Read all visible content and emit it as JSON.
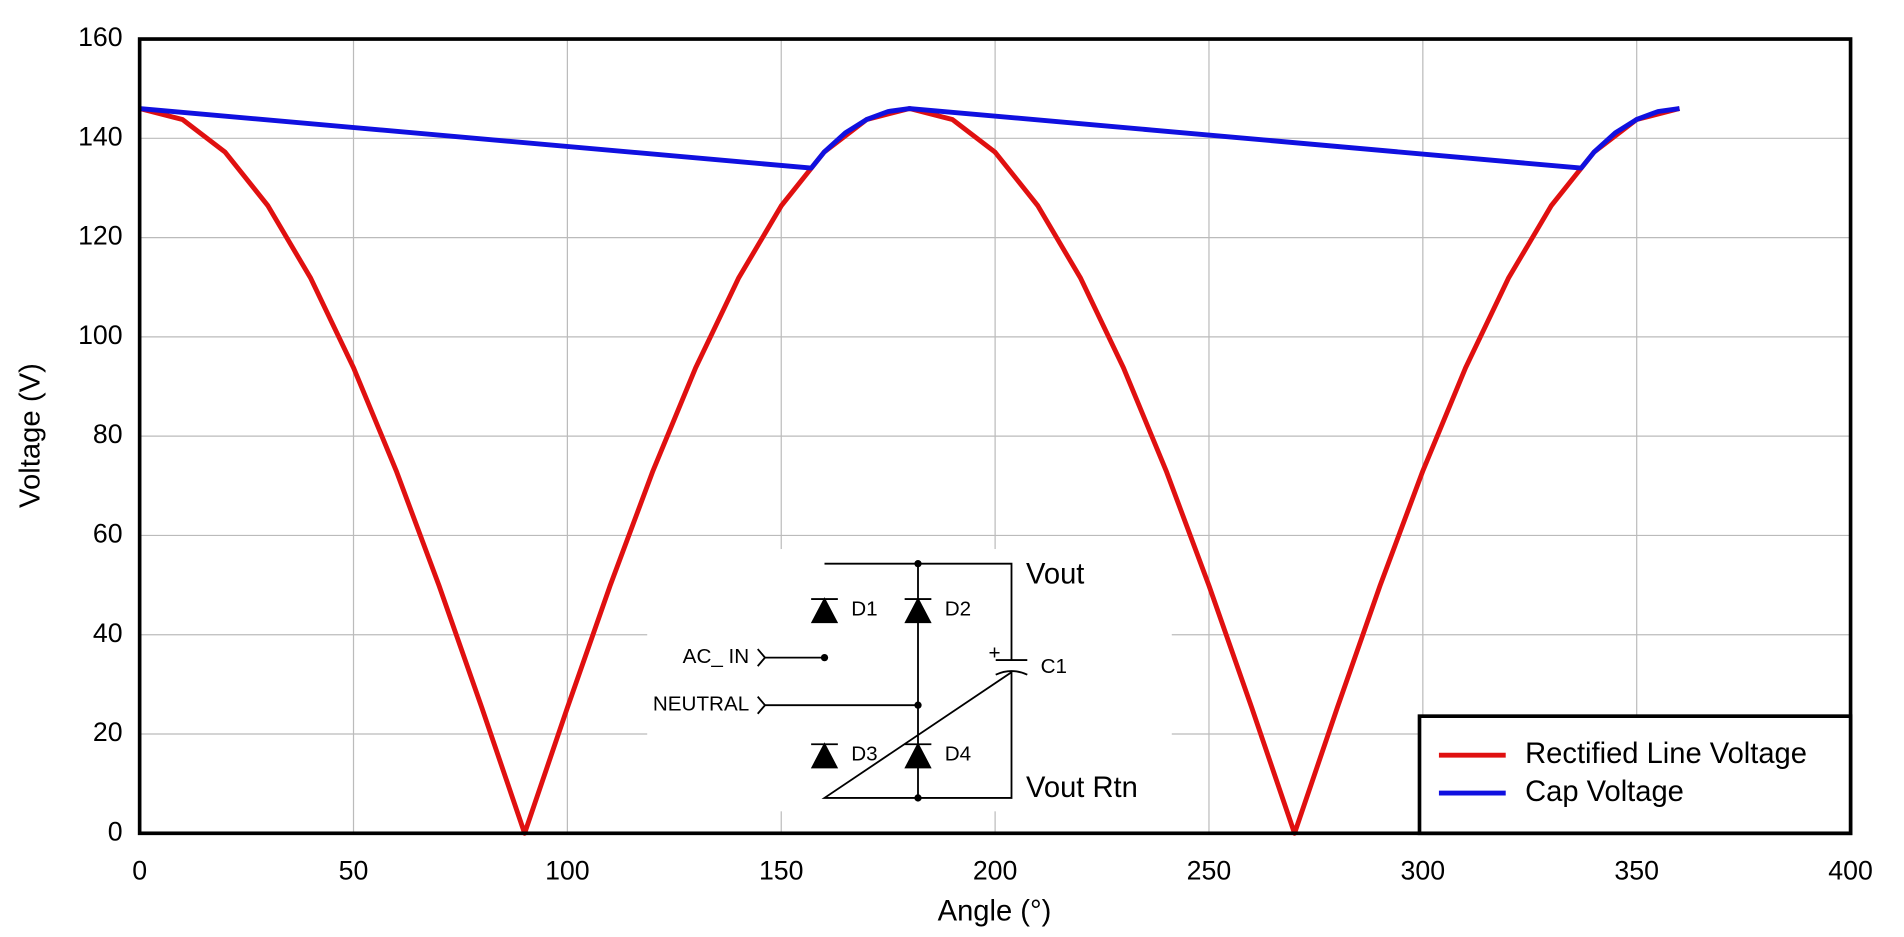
{
  "chart_data": {
    "type": "line",
    "xlabel": "Angle (°)",
    "ylabel": "Voltage (V)",
    "xlim": [
      0,
      400
    ],
    "xticks": [
      0,
      50,
      100,
      150,
      200,
      250,
      300,
      350,
      400
    ],
    "ylim": [
      0,
      160
    ],
    "yticks": [
      0,
      20,
      40,
      60,
      80,
      100,
      120,
      140,
      160
    ],
    "grid": true,
    "legend": "lower right",
    "series": [
      {
        "name": "Rectified Line Voltage",
        "color": "#e01010",
        "x": [
          0,
          10,
          20,
          30,
          40,
          50,
          60,
          70,
          80,
          90,
          100,
          110,
          120,
          130,
          140,
          150,
          160,
          170,
          180,
          190,
          200,
          210,
          220,
          230,
          240,
          250,
          260,
          270,
          280,
          290,
          300,
          310,
          320,
          330,
          340,
          350,
          360
        ],
        "values": [
          146,
          143.8,
          137.2,
          126.4,
          111.8,
          93.8,
          73,
          49.9,
          25.3,
          0,
          25.3,
          49.9,
          73,
          93.8,
          111.8,
          126.4,
          137.2,
          143.8,
          146,
          143.8,
          137.2,
          126.4,
          111.8,
          93.8,
          73,
          49.9,
          25.3,
          0,
          25.3,
          49.9,
          73,
          93.8,
          111.8,
          126.4,
          137.2,
          143.8,
          146
        ]
      },
      {
        "name": "Cap Voltage",
        "color": "#1010e0",
        "x": [
          0,
          157,
          160,
          165,
          170,
          175,
          180,
          337,
          340,
          345,
          350,
          355,
          360
        ],
        "values": [
          146,
          134,
          137.2,
          141.1,
          143.8,
          145.4,
          146,
          134,
          137.2,
          141.1,
          143.8,
          145.4,
          146
        ]
      }
    ],
    "annotations": [
      "Vout",
      "D1",
      "D2",
      "C1",
      "AC_ IN",
      "NEUTRAL",
      "D3",
      "D4",
      "Vout Rtn"
    ]
  }
}
